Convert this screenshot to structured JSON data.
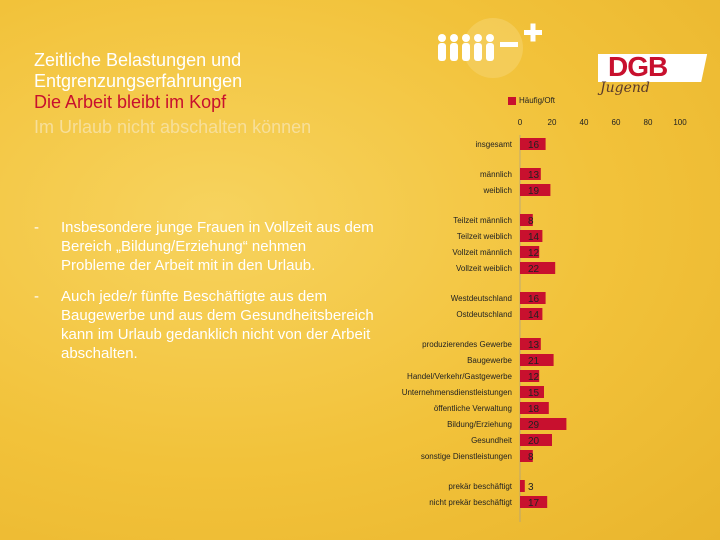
{
  "title": {
    "line1": "Zeitliche Belastungen und",
    "line2": "Entgrenzungserfahrungen",
    "line3": "Die Arbeit bleibt im Kopf",
    "line4": "Im Urlaub nicht abschalten können"
  },
  "bullets": [
    {
      "dash": "-",
      "text": "Insbesondere junge Frauen in Vollzeit aus dem Bereich „Bildung/Erziehung“ nehmen Probleme der Arbeit mit in den Urlaub."
    },
    {
      "dash": "-",
      "text": "Auch jede/r fünfte Beschäftigte aus dem Baugewerbe und aus dem Gesundheitsbereich kann im Urlaub gedanklich nicht von der Arbeit abschalten."
    }
  ],
  "logo": {
    "text": "DGB",
    "script": "Jugend"
  },
  "colors": {
    "bar": "#c8102e",
    "background": "#f2c23a"
  },
  "chart_data": {
    "type": "bar",
    "orientation": "horizontal",
    "legend": [
      "Häufig/Oft"
    ],
    "xlim": [
      0,
      100
    ],
    "xticks": [
      "0",
      "20",
      "40",
      "60",
      "80",
      "100"
    ],
    "groups": [
      {
        "items": [
          {
            "label": "insgesamt",
            "value": 16
          }
        ]
      },
      {
        "items": [
          {
            "label": "männlich",
            "value": 13
          },
          {
            "label": "weiblich",
            "value": 19
          }
        ]
      },
      {
        "items": [
          {
            "label": "Teilzeit männlich",
            "value": 8
          },
          {
            "label": "Teilzeit weiblich",
            "value": 14
          },
          {
            "label": "Vollzeit männlich",
            "value": 12
          },
          {
            "label": "Vollzeit weiblich",
            "value": 22
          }
        ]
      },
      {
        "items": [
          {
            "label": "Westdeutschland",
            "value": 16
          },
          {
            "label": "Ostdeutschland",
            "value": 14
          }
        ]
      },
      {
        "items": [
          {
            "label": "produzierendes Gewerbe",
            "value": 13
          },
          {
            "label": "Baugewerbe",
            "value": 21
          },
          {
            "label": "Handel/Verkehr/Gastgewerbe",
            "value": 12
          },
          {
            "label": "Unternehmensdienstleistungen",
            "value": 15
          },
          {
            "label": "öffentliche Verwaltung",
            "value": 18
          },
          {
            "label": "Bildung/Erziehung",
            "value": 29
          },
          {
            "label": "Gesundheit",
            "value": 20
          },
          {
            "label": "sonstige Dienstleistungen",
            "value": 8
          }
        ]
      },
      {
        "items": [
          {
            "label": "prekär beschäftigt",
            "value": 3
          },
          {
            "label": "nicht prekär beschäftigt",
            "value": 17
          }
        ]
      }
    ]
  }
}
